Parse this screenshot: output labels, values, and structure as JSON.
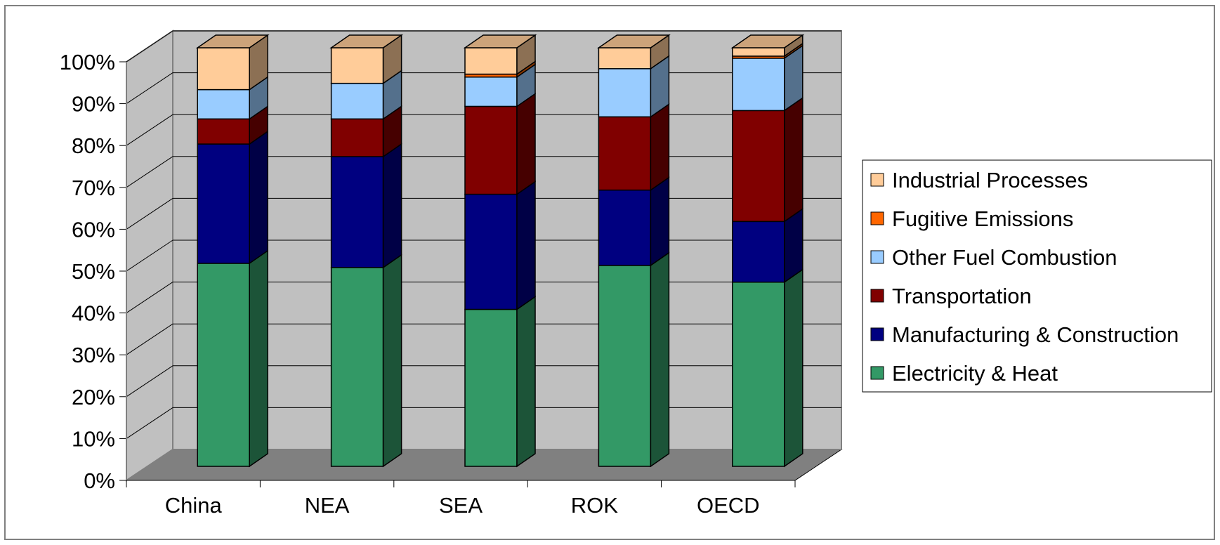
{
  "chart_data": {
    "type": "bar",
    "stacked": true,
    "percent_stacked": true,
    "three_d": true,
    "categories": [
      "China",
      "NEA",
      "SEA",
      "ROK",
      "OECD"
    ],
    "y_ticks": [
      "0%",
      "10%",
      "20%",
      "30%",
      "40%",
      "50%",
      "60%",
      "70%",
      "80%",
      "90%",
      "100%"
    ],
    "ylim": [
      0,
      100
    ],
    "grid": true,
    "legend_position": "right",
    "series": [
      {
        "name": "Electricity & Heat",
        "color": "#339966",
        "values": [
          48.5,
          47.5,
          37.5,
          48,
          44
        ]
      },
      {
        "name": "Manufacturing & Construction",
        "color": "#000080",
        "values": [
          28.5,
          26.5,
          27.5,
          18,
          14.5
        ]
      },
      {
        "name": "Transportation",
        "color": "#800000",
        "values": [
          6,
          9,
          21,
          17.5,
          26.5
        ]
      },
      {
        "name": "Other Fuel Combustion",
        "color": "#99CCFF",
        "values": [
          7,
          8.5,
          7,
          11.5,
          12.5
        ]
      },
      {
        "name": "Fugitive Emissions",
        "color": "#FF6600",
        "values": [
          0,
          0,
          0.7,
          0,
          0.5
        ]
      },
      {
        "name": "Industrial Processes",
        "color": "#FFCC99",
        "values": [
          10,
          8.5,
          6.3,
          5,
          2
        ]
      }
    ],
    "legend_order": [
      "Industrial Processes",
      "Fugitive Emissions",
      "Other Fuel Combustion",
      "Transportation",
      "Manufacturing & Construction",
      "Electricity & Heat"
    ],
    "colors": {
      "back_wall": "#C0C0C0",
      "side_wall": "#C0C0C0",
      "floor": "#808080",
      "gridline": "#000000"
    }
  }
}
